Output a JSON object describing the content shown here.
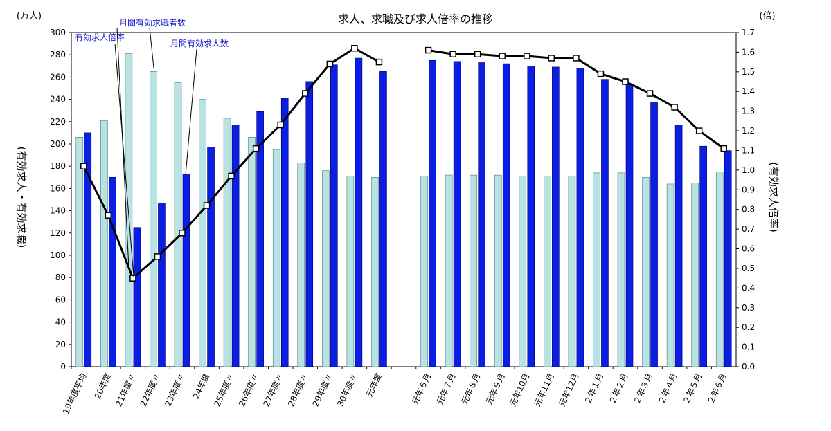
{
  "chart_data": {
    "type": "bar",
    "title": "求人、求職及び求人倍率の推移",
    "left_unit": "(万人)",
    "right_unit": "(倍)",
    "left_axis_label": "(有効求人・有効求職)",
    "right_axis_label": "(有効求人倍率)",
    "left_ylim": [
      0,
      300
    ],
    "left_ticks": [
      0,
      20,
      40,
      60,
      80,
      100,
      120,
      140,
      160,
      180,
      200,
      220,
      240,
      260,
      280,
      300
    ],
    "right_ylim": [
      0,
      1.7
    ],
    "right_ticks": [
      "0.0",
      "0.1",
      "0.2",
      "0.3",
      "0.4",
      "0.5",
      "0.6",
      "0.7",
      "0.8",
      "0.9",
      "1.0",
      "1.1",
      "1.2",
      "1.3",
      "1.4",
      "1.5",
      "1.6",
      "1.7"
    ],
    "categories": [
      "19年度平均",
      "20年度",
      "21年度〃",
      "22年度〃",
      "23年度〃",
      "24年度",
      "25年度〃",
      "26年度〃",
      "27年度〃",
      "28年度〃",
      "29年度〃",
      "30年度〃",
      "元年度",
      "",
      "元年６月",
      "元年７月",
      "元年８月",
      "元年９月",
      "元年10月",
      "元年11月",
      "元年12月",
      "２年１月",
      "２年２月",
      "２年３月",
      "２年４月",
      "２年５月",
      "２年６月"
    ],
    "series": [
      {
        "name": "月間有効求職者数",
        "type": "bar",
        "color": "#b9e3e3",
        "values": [
          206,
          221,
          281,
          265,
          255,
          240,
          223,
          206,
          195,
          183,
          176,
          171,
          170,
          null,
          171,
          172,
          172,
          172,
          171,
          171,
          171,
          174,
          174,
          170,
          164,
          165,
          175
        ]
      },
      {
        "name": "月間有効求人数",
        "type": "bar",
        "color": "#0a1ee6",
        "values": [
          210,
          170,
          125,
          147,
          173,
          197,
          217,
          229,
          241,
          256,
          271,
          277,
          265,
          null,
          275,
          274,
          273,
          272,
          270,
          269,
          268,
          258,
          253,
          237,
          217,
          198,
          194
        ]
      },
      {
        "name": "有効求人倍率",
        "type": "line",
        "axis": "right",
        "color": "#000000",
        "values": [
          1.02,
          0.77,
          0.45,
          0.56,
          0.68,
          0.82,
          0.97,
          1.11,
          1.23,
          1.39,
          1.54,
          1.62,
          1.55,
          null,
          1.61,
          1.59,
          1.59,
          1.58,
          1.58,
          1.57,
          1.57,
          1.49,
          1.45,
          1.39,
          1.32,
          1.2,
          1.11
        ]
      }
    ],
    "annotations": [
      "有効求人倍率",
      "月間有効求職者数",
      "月間有効求人数"
    ]
  }
}
